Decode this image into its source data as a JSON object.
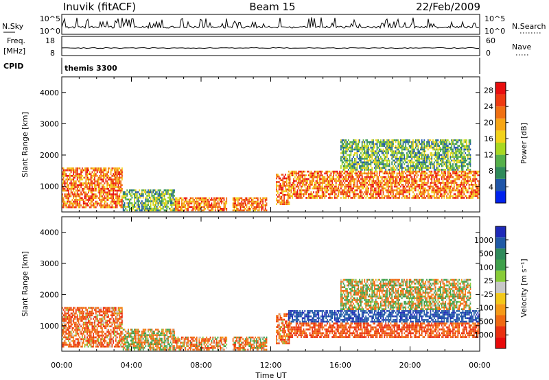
{
  "header": {
    "station": "Inuvik (fitACF)",
    "beam": "Beam 15",
    "date": "22/Feb/2009"
  },
  "sky_panel": {
    "left_label": "N.Sky",
    "right_label": "N.Search",
    "left_ticks": [
      "10^5",
      "10^0"
    ],
    "right_ticks": [
      "10^5",
      "10^0"
    ]
  },
  "freq_panel": {
    "left_label": "Freq.",
    "left_unit": "[MHz]",
    "right_label": "Nave",
    "left_ticks": [
      "18",
      "8"
    ],
    "right_ticks": [
      "60",
      "0"
    ]
  },
  "cpid_panel": {
    "label": "CPID",
    "value": "themis 3300"
  },
  "colors": {
    "power_scale": [
      "#0022ee",
      "#1f55a8",
      "#2e8a5a",
      "#55b04a",
      "#a8d820",
      "#f2d21a",
      "#f7a614",
      "#f07012",
      "#ee3a10",
      "#e80e0e"
    ],
    "velocity_scale": [
      "#1e2ab8",
      "#205aa6",
      "#2e8a5a",
      "#3fa04a",
      "#88cc38",
      "#c8c8c8",
      "#f2c81a",
      "#f59a18",
      "#f06a12",
      "#ea3010",
      "#e80a0a"
    ]
  },
  "chart_data": [
    {
      "type": "heatmap",
      "name": "power",
      "ylabel": "Slant Range [km]",
      "x_range_hours": [
        0,
        24
      ],
      "y_range_km": [
        180,
        4500
      ],
      "y_ticks": [
        1000,
        2000,
        3000,
        4000
      ],
      "colorbar": {
        "label": "Power [dB]",
        "tick_labels": [
          "4",
          "8",
          "12",
          "16",
          "20",
          "24",
          "28"
        ],
        "range": [
          0,
          30
        ]
      },
      "bands": [
        {
          "start_hour": 0.0,
          "end_hour": 3.5,
          "range_min_km": 300,
          "range_max_km": 1600,
          "level": "strong"
        },
        {
          "start_hour": 3.5,
          "end_hour": 6.5,
          "range_min_km": 200,
          "range_max_km": 900,
          "level": "weak"
        },
        {
          "start_hour": 6.5,
          "end_hour": 9.5,
          "range_min_km": 200,
          "range_max_km": 650,
          "level": "strong"
        },
        {
          "start_hour": 9.8,
          "end_hour": 11.8,
          "range_min_km": 200,
          "range_max_km": 650,
          "level": "strong"
        },
        {
          "start_hour": 12.3,
          "end_hour": 13.1,
          "range_min_km": 400,
          "range_max_km": 1400,
          "level": "strong"
        },
        {
          "start_hour": 13.0,
          "end_hour": 24.0,
          "range_min_km": 600,
          "range_max_km": 1500,
          "level": "strong"
        },
        {
          "start_hour": 16.0,
          "end_hour": 23.5,
          "range_min_km": 1500,
          "range_max_km": 2500,
          "level": "weak"
        }
      ]
    },
    {
      "type": "heatmap",
      "name": "velocity",
      "ylabel": "Slant Range [km]",
      "xlabel": "Time UT",
      "x_range_hours": [
        0,
        24
      ],
      "y_range_km": [
        180,
        4500
      ],
      "y_ticks": [
        1000,
        2000,
        3000,
        4000
      ],
      "x_tick_labels": [
        "00:00",
        "04:00",
        "08:00",
        "12:00",
        "16:00",
        "20:00",
        "00:00"
      ],
      "colorbar": {
        "label": "Velocity [m s⁻¹]",
        "tick_labels": [
          "1000",
          "500",
          "100",
          "25",
          "-25",
          "-100",
          "-500",
          "-1000"
        ]
      },
      "bands": [
        {
          "start_hour": 0.0,
          "end_hour": 3.5,
          "range_min_km": 300,
          "range_max_km": 1600,
          "velocity": -200
        },
        {
          "start_hour": 3.5,
          "end_hour": 6.5,
          "range_min_km": 200,
          "range_max_km": 900,
          "velocity": 0
        },
        {
          "start_hour": 6.5,
          "end_hour": 9.5,
          "range_min_km": 200,
          "range_max_km": 650,
          "velocity": -150
        },
        {
          "start_hour": 9.8,
          "end_hour": 11.8,
          "range_min_km": 200,
          "range_max_km": 650,
          "velocity": -100
        },
        {
          "start_hour": 12.3,
          "end_hour": 13.1,
          "range_min_km": 400,
          "range_max_km": 1400,
          "velocity": -200
        },
        {
          "start_hour": 13.0,
          "end_hour": 24.0,
          "range_min_km": 1100,
          "range_max_km": 1500,
          "velocity": 600
        },
        {
          "start_hour": 13.0,
          "end_hour": 24.0,
          "range_min_km": 600,
          "range_max_km": 1100,
          "velocity": -300
        },
        {
          "start_hour": 16.0,
          "end_hour": 23.5,
          "range_min_km": 1500,
          "range_max_km": 2500,
          "velocity": 0
        }
      ]
    }
  ]
}
